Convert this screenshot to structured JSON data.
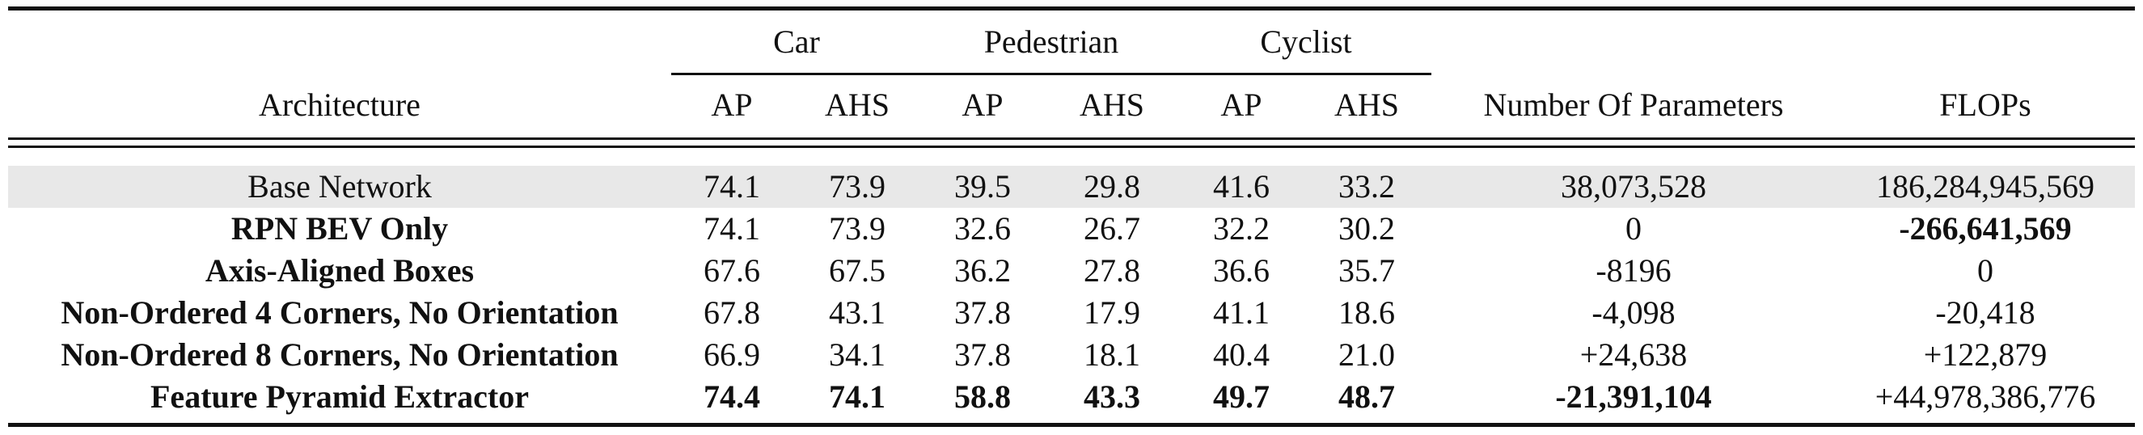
{
  "header": {
    "architecture": "Architecture",
    "groups": [
      "Car",
      "Pedestrian",
      "Cyclist"
    ],
    "subcols": [
      "AP",
      "AHS",
      "AP",
      "AHS",
      "AP",
      "AHS"
    ],
    "params": "Number Of Parameters",
    "flops": "FLOPs"
  },
  "rows": [
    {
      "arch": "Base Network",
      "vals": [
        "74.1",
        "73.9",
        "39.5",
        "29.8",
        "41.6",
        "33.2"
      ],
      "params": "38,073,528",
      "flops": "186,284,945,569",
      "bold": []
    },
    {
      "arch": "RPN BEV Only",
      "vals": [
        "74.1",
        "73.9",
        "32.6",
        "26.7",
        "32.2",
        "30.2"
      ],
      "params": "0",
      "flops": "-266,641,569",
      "bold": [
        "arch",
        "flops"
      ]
    },
    {
      "arch": "Axis-Aligned Boxes",
      "vals": [
        "67.6",
        "67.5",
        "36.2",
        "27.8",
        "36.6",
        "35.7"
      ],
      "params": "-8196",
      "flops": "0",
      "bold": [
        "arch"
      ]
    },
    {
      "arch": "Non-Ordered 4 Corners, No Orientation",
      "vals": [
        "67.8",
        "43.1",
        "37.8",
        "17.9",
        "41.1",
        "18.6"
      ],
      "params": "-4,098",
      "flops": "-20,418",
      "bold": [
        "arch"
      ]
    },
    {
      "arch": "Non-Ordered 8 Corners, No Orientation",
      "vals": [
        "66.9",
        "34.1",
        "37.8",
        "18.1",
        "40.4",
        "21.0"
      ],
      "params": "+24,638",
      "flops": "+122,879",
      "bold": [
        "arch"
      ]
    },
    {
      "arch": "Feature Pyramid Extractor",
      "vals": [
        "74.4",
        "74.1",
        "58.8",
        "43.3",
        "49.7",
        "48.7"
      ],
      "params": "-21,391,104",
      "flops": "+44,978,386,776",
      "bold": [
        "arch",
        "v0",
        "v1",
        "v2",
        "v3",
        "v4",
        "v5",
        "params"
      ]
    }
  ]
}
